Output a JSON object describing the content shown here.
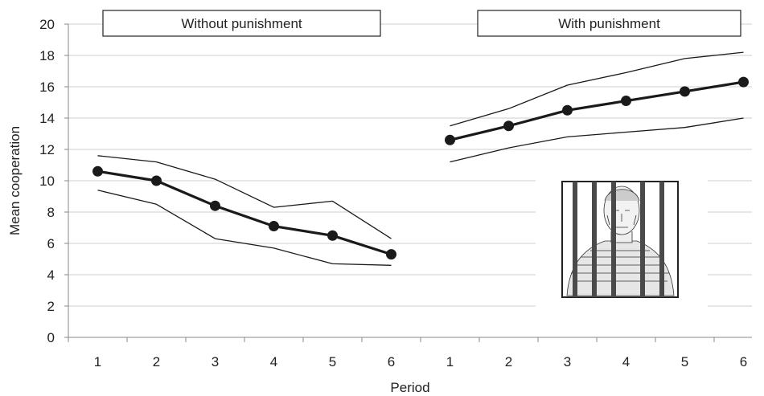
{
  "chart_data": {
    "type": "line",
    "xlabel": "Period",
    "ylabel": "Mean cooperation",
    "ylim": [
      0,
      20
    ],
    "yticks": [
      "0",
      "2",
      "4",
      "6",
      "8",
      "10",
      "12",
      "14",
      "16",
      "18",
      "20"
    ],
    "grid": "horizontal",
    "colors": {
      "grid": "#cfcfcf",
      "axis": "#888888",
      "line": "#1a1a1a"
    },
    "panels": [
      {
        "label": "Without punishment",
        "periods": [
          "1",
          "2",
          "3",
          "4",
          "5",
          "6"
        ],
        "series": [
          {
            "role": "mean",
            "values": [
              10.6,
              10.0,
              8.4,
              7.1,
              6.5,
              5.3
            ]
          },
          {
            "role": "upper",
            "values": [
              11.6,
              11.2,
              10.1,
              8.3,
              8.7,
              6.3
            ]
          },
          {
            "role": "lower",
            "values": [
              9.4,
              8.5,
              6.3,
              5.7,
              4.7,
              4.6
            ]
          }
        ]
      },
      {
        "label": "With punishment",
        "periods": [
          "1",
          "2",
          "3",
          "4",
          "5",
          "6"
        ],
        "series": [
          {
            "role": "mean",
            "values": [
              12.6,
              13.5,
              14.5,
              15.1,
              15.7,
              16.3
            ]
          },
          {
            "role": "upper",
            "values": [
              13.5,
              14.6,
              16.1,
              16.9,
              17.8,
              18.2
            ]
          },
          {
            "role": "lower",
            "values": [
              11.2,
              12.1,
              12.8,
              13.1,
              13.4,
              14.0
            ]
          }
        ]
      }
    ]
  },
  "illustration": {
    "icon": "prisoner-behind-bars-icon"
  }
}
